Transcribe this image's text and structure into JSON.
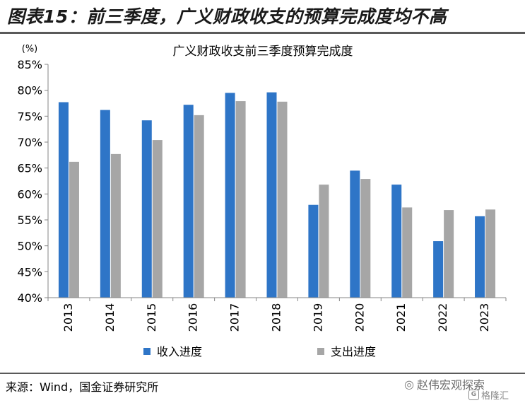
{
  "figure_title": "图表15：前三季度，广义财政收支的预算完成度均不高",
  "source_note": "来源：Wind，国金证券研究所",
  "watermark": {
    "text": "赵伟宏观探索",
    "icon": "wechat-icon"
  },
  "brand": {
    "text": "格隆汇",
    "icon": "brand-logo-icon"
  },
  "colors": {
    "income": "#2e75c7",
    "expenditure": "#a6a6a6",
    "axis": "#868686"
  },
  "chart_data": {
    "type": "bar",
    "title": "广义财政收支前三季度预算完成度",
    "ylabel": "(%)",
    "xlabel": "",
    "categories": [
      "2013",
      "2014",
      "2015",
      "2016",
      "2017",
      "2018",
      "2019",
      "2020",
      "2021",
      "2022",
      "2023"
    ],
    "series": [
      {
        "name": "收入进度",
        "values": [
          77.7,
          76.2,
          74.2,
          77.2,
          79.5,
          79.6,
          57.9,
          64.5,
          61.8,
          50.9,
          55.7
        ]
      },
      {
        "name": "支出进度",
        "values": [
          66.2,
          67.7,
          70.4,
          75.2,
          77.9,
          77.8,
          61.8,
          62.9,
          57.4,
          56.9,
          57.0
        ]
      }
    ],
    "ylim": [
      40,
      85
    ],
    "yticks": [
      40,
      45,
      50,
      55,
      60,
      65,
      70,
      75,
      80,
      85
    ],
    "ytick_labels": [
      "40%",
      "45%",
      "50%",
      "55%",
      "60%",
      "65%",
      "70%",
      "75%",
      "80%",
      "85%"
    ],
    "grid": false,
    "legend_position": "bottom"
  }
}
